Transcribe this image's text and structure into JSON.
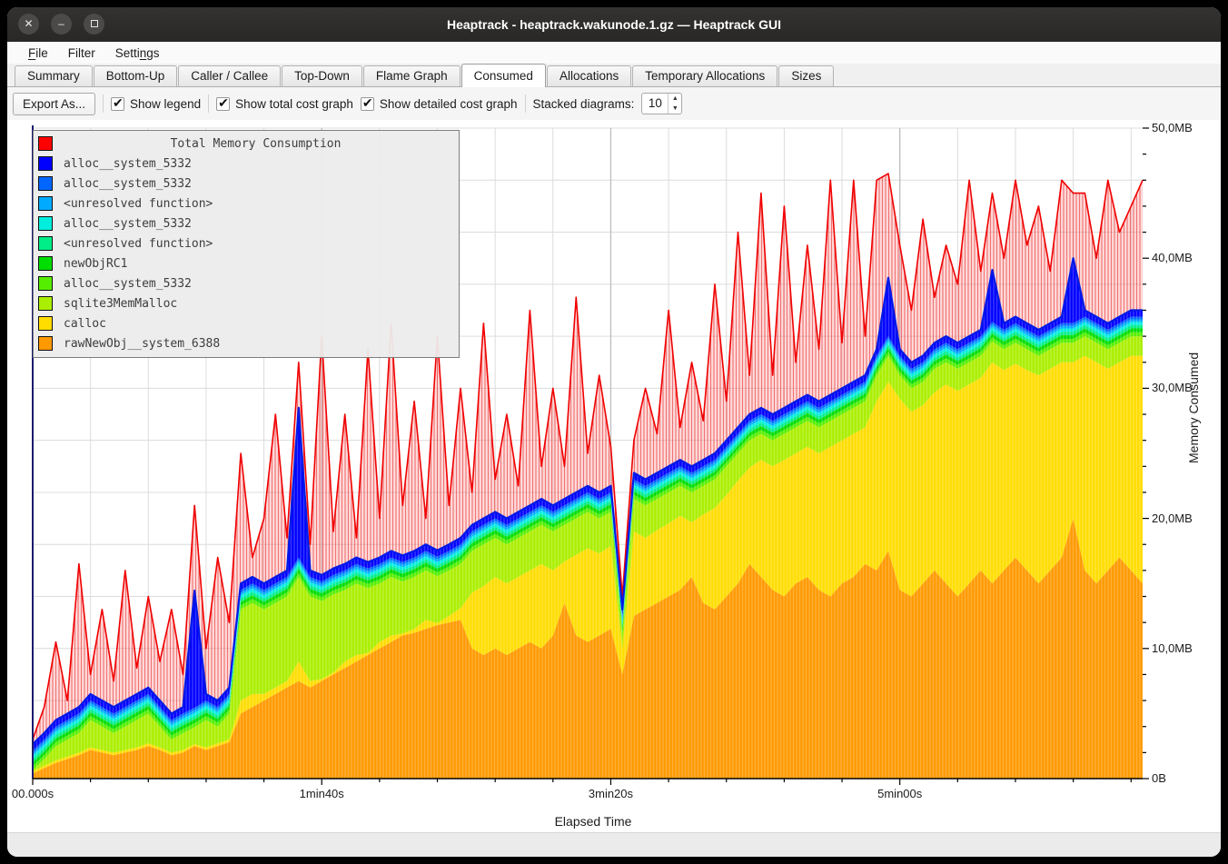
{
  "window": {
    "title": "Heaptrack - heaptrack.wakunode.1.gz — Heaptrack GUI"
  },
  "menu": {
    "items": [
      {
        "label": "File",
        "accel": "F"
      },
      {
        "label": "Filter",
        "accel": ""
      },
      {
        "label": "Settings",
        "accel": "n"
      }
    ]
  },
  "tabs": {
    "active_index": 5,
    "items": [
      {
        "label": "Summary"
      },
      {
        "label": "Bottom-Up"
      },
      {
        "label": "Caller / Callee"
      },
      {
        "label": "Top-Down"
      },
      {
        "label": "Flame Graph"
      },
      {
        "label": "Consumed"
      },
      {
        "label": "Allocations"
      },
      {
        "label": "Temporary Allocations"
      },
      {
        "label": "Sizes"
      }
    ]
  },
  "toolbar": {
    "export_label": "Export As...",
    "checkboxes": [
      {
        "label": "Show legend",
        "checked": true
      },
      {
        "label": "Show total cost graph",
        "checked": true
      },
      {
        "label": "Show detailed cost graph",
        "checked": true
      }
    ],
    "spinner_label": "Stacked diagrams:",
    "spinner_value": "10"
  },
  "chart_data": {
    "type": "area",
    "xlabel": "Elapsed Time",
    "ylabel": "Memory Consumed",
    "x_max_s": 384,
    "y_max_mb": 50,
    "x_step_s": 4,
    "x_count": 97,
    "grid": {
      "on": true,
      "x_minor_s": 20,
      "y_minor_mb": 4
    },
    "x_ticks": [
      {
        "s": 0,
        "label": "00.000s"
      },
      {
        "s": 100,
        "label": "1min40s"
      },
      {
        "s": 200,
        "label": "3min20s"
      },
      {
        "s": 300,
        "label": "5min00s"
      }
    ],
    "y_ticks": [
      {
        "mb": 0,
        "label": "0B"
      },
      {
        "mb": 10,
        "label": "10,0MB"
      },
      {
        "mb": 20,
        "label": "20,0MB"
      },
      {
        "mb": 30,
        "label": "30,0MB"
      },
      {
        "mb": 40,
        "label": "40,0MB"
      },
      {
        "mb": 50,
        "label": "50,0MB"
      }
    ],
    "legend_title": "Total Memory Consumption",
    "legend_position": "top-left",
    "series": [
      {
        "name": "Total Memory Consumption",
        "color": "#ff0000",
        "role": "total",
        "values": [
          3,
          5.5,
          10.5,
          6,
          16.5,
          8,
          13,
          7.5,
          16,
          8.5,
          14,
          9,
          13,
          8,
          21,
          10,
          17,
          12,
          25,
          17,
          20,
          28,
          18.5,
          32,
          18,
          34,
          19,
          28,
          18.5,
          33,
          20,
          35,
          21,
          29,
          20,
          34,
          21,
          30,
          22,
          35,
          23,
          28,
          22.5,
          36,
          24,
          30,
          24,
          37,
          25,
          31,
          25.5,
          14,
          26,
          30,
          26.5,
          36,
          27,
          32,
          27.5,
          38,
          29,
          42,
          31,
          45,
          31,
          44,
          32,
          41,
          33,
          46,
          33.5,
          46,
          34,
          46,
          46.5,
          41,
          36,
          43,
          37,
          41,
          38,
          46,
          39,
          45,
          40,
          46,
          41,
          44,
          39,
          46,
          45,
          45,
          40,
          46,
          42,
          44,
          46
        ]
      },
      {
        "name": "alloc__system_5332",
        "color": "#0000ff",
        "values": [
          0.5,
          0.5,
          0.5,
          0.5,
          0.5,
          0.5,
          0.5,
          0.5,
          0.5,
          0.5,
          0.5,
          0.5,
          0.5,
          0.5,
          9,
          0.5,
          0.5,
          0.5,
          0.5,
          0.5,
          0.5,
          0.5,
          0.5,
          11.5,
          0.5,
          0.5,
          0.5,
          0.5,
          0.5,
          0.5,
          0.5,
          0.5,
          0.5,
          0.5,
          0.5,
          0.5,
          0.5,
          0.5,
          0.5,
          0.5,
          0.5,
          0.5,
          0.5,
          0.5,
          0.5,
          0.5,
          0.5,
          0.5,
          0.5,
          0.5,
          0.5,
          0.5,
          0.5,
          0.5,
          0.5,
          0.5,
          0.5,
          0.5,
          0.5,
          0.5,
          0.5,
          0.5,
          0.5,
          0.5,
          0.5,
          0.5,
          0.5,
          0.5,
          0.5,
          0.5,
          0.5,
          0.5,
          0.5,
          0.5,
          4.5,
          0.5,
          0.5,
          0.5,
          0.5,
          0.5,
          0.5,
          0.5,
          0.5,
          4,
          0.5,
          0.5,
          0.5,
          0.5,
          0.5,
          0.5,
          5,
          0.5,
          0.5,
          0.5,
          0.5,
          0.5,
          0.5
        ]
      },
      {
        "name": "alloc__system_5332",
        "color": "#0066ff",
        "uniform_value_mb": 0.2
      },
      {
        "name": "<unresolved function>",
        "color": "#00aaff",
        "uniform_value_mb": 0.2
      },
      {
        "name": "alloc__system_5332",
        "color": "#00eedd",
        "uniform_value_mb": 0.25
      },
      {
        "name": "<unresolved function>",
        "color": "#00ee88",
        "uniform_value_mb": 0.25
      },
      {
        "name": "newObjRC1",
        "color": "#00dd00",
        "uniform_value_mb": 0.3
      },
      {
        "name": "alloc__system_5332",
        "color": "#55ee00",
        "uniform_value_mb": 0.3
      },
      {
        "name": "sqlite3MemMalloc",
        "color": "#aaee00",
        "values": [
          0.1,
          0.5,
          1.1,
          1.3,
          1.5,
          2.1,
          1.8,
          1.5,
          1.8,
          2.1,
          2.3,
          1.6,
          1,
          1.3,
          1.3,
          2.1,
          1.3,
          2,
          7,
          7,
          6.5,
          6.5,
          6.5,
          6.5,
          6.5,
          6,
          6,
          5.5,
          5.5,
          5,
          4.5,
          4.5,
          4,
          4,
          3.8,
          3.6,
          3.5,
          3.4,
          3.2,
          3.2,
          3,
          3,
          3,
          3,
          3,
          3,
          2.8,
          2.8,
          2.8,
          2.7,
          2.6,
          1,
          2.5,
          2.5,
          2.4,
          2.4,
          2.3,
          2.3,
          2.2,
          2.2,
          2.2,
          2.1,
          2.1,
          2,
          2,
          2,
          2,
          2,
          2,
          2,
          2,
          2,
          2,
          2,
          2,
          1.8,
          1.8,
          1.8,
          1.8,
          1.7,
          1.7,
          1.7,
          1.7,
          1.6,
          1.6,
          1.6,
          1.6,
          1.5,
          1.5,
          1.5,
          1.5,
          1.5,
          1.5,
          1.5,
          1.5,
          1.5,
          1.5
        ]
      },
      {
        "name": "calloc",
        "color": "#ffdd00",
        "values": [
          0.15,
          0.2,
          0.2,
          0.2,
          0.2,
          0.2,
          0.2,
          0.2,
          0.2,
          0.2,
          0.2,
          0.2,
          0.2,
          0.2,
          0.15,
          0.2,
          0.2,
          0.2,
          1,
          1,
          0.5,
          0.5,
          0.5,
          1.5,
          0.5,
          0.15,
          0.15,
          0.5,
          0.5,
          0.15,
          0.5,
          0.5,
          0.15,
          0.3,
          0.7,
          0.15,
          0.5,
          0.9,
          4.3,
          5.3,
          5.5,
          5.5,
          5.5,
          5.5,
          6.5,
          5,
          3.2,
          6.2,
          7.2,
          6.3,
          6.4,
          2,
          6.5,
          5.5,
          5.6,
          5.6,
          5.7,
          4.2,
          6.8,
          7.8,
          7.8,
          7.9,
          7.4,
          9,
          9.5,
          10.5,
          10,
          10,
          10.5,
          11.5,
          11,
          11,
          10.5,
          13,
          13,
          14.7,
          14.2,
          13.7,
          13.7,
          15.3,
          15.8,
          15.3,
          14.8,
          17,
          15.4,
          14.9,
          15.4,
          16,
          15.5,
          15,
          12,
          16.5,
          17,
          15.5,
          15,
          16.5,
          17.5
        ]
      },
      {
        "name": "rawNewObj__system_6388",
        "color": "#ff9900",
        "values": [
          0.4,
          0.8,
          1.2,
          1.5,
          1.8,
          2.2,
          2,
          1.8,
          2,
          2.2,
          2.5,
          2.2,
          1.8,
          2,
          2.5,
          2.2,
          2.5,
          2.8,
          5,
          5.5,
          6,
          6.5,
          7,
          7.5,
          7,
          7.5,
          8,
          8.5,
          9,
          9.5,
          10,
          10.5,
          11,
          11.2,
          11.5,
          11.8,
          12,
          12.2,
          10,
          9.5,
          10,
          9.5,
          10,
          10.5,
          10,
          11,
          13.5,
          11,
          10.5,
          11,
          11.5,
          8,
          12.5,
          13,
          13.5,
          14,
          14.5,
          15.5,
          13.5,
          13,
          14,
          15,
          16.5,
          15.5,
          14.5,
          14,
          15,
          15.5,
          14.5,
          14,
          15,
          15.5,
          16.5,
          16,
          17.5,
          14.5,
          14,
          15,
          16,
          15,
          14,
          15,
          16,
          15,
          16,
          17,
          16,
          15,
          16,
          17,
          20,
          16,
          15,
          16,
          17,
          16,
          15
        ]
      }
    ]
  }
}
